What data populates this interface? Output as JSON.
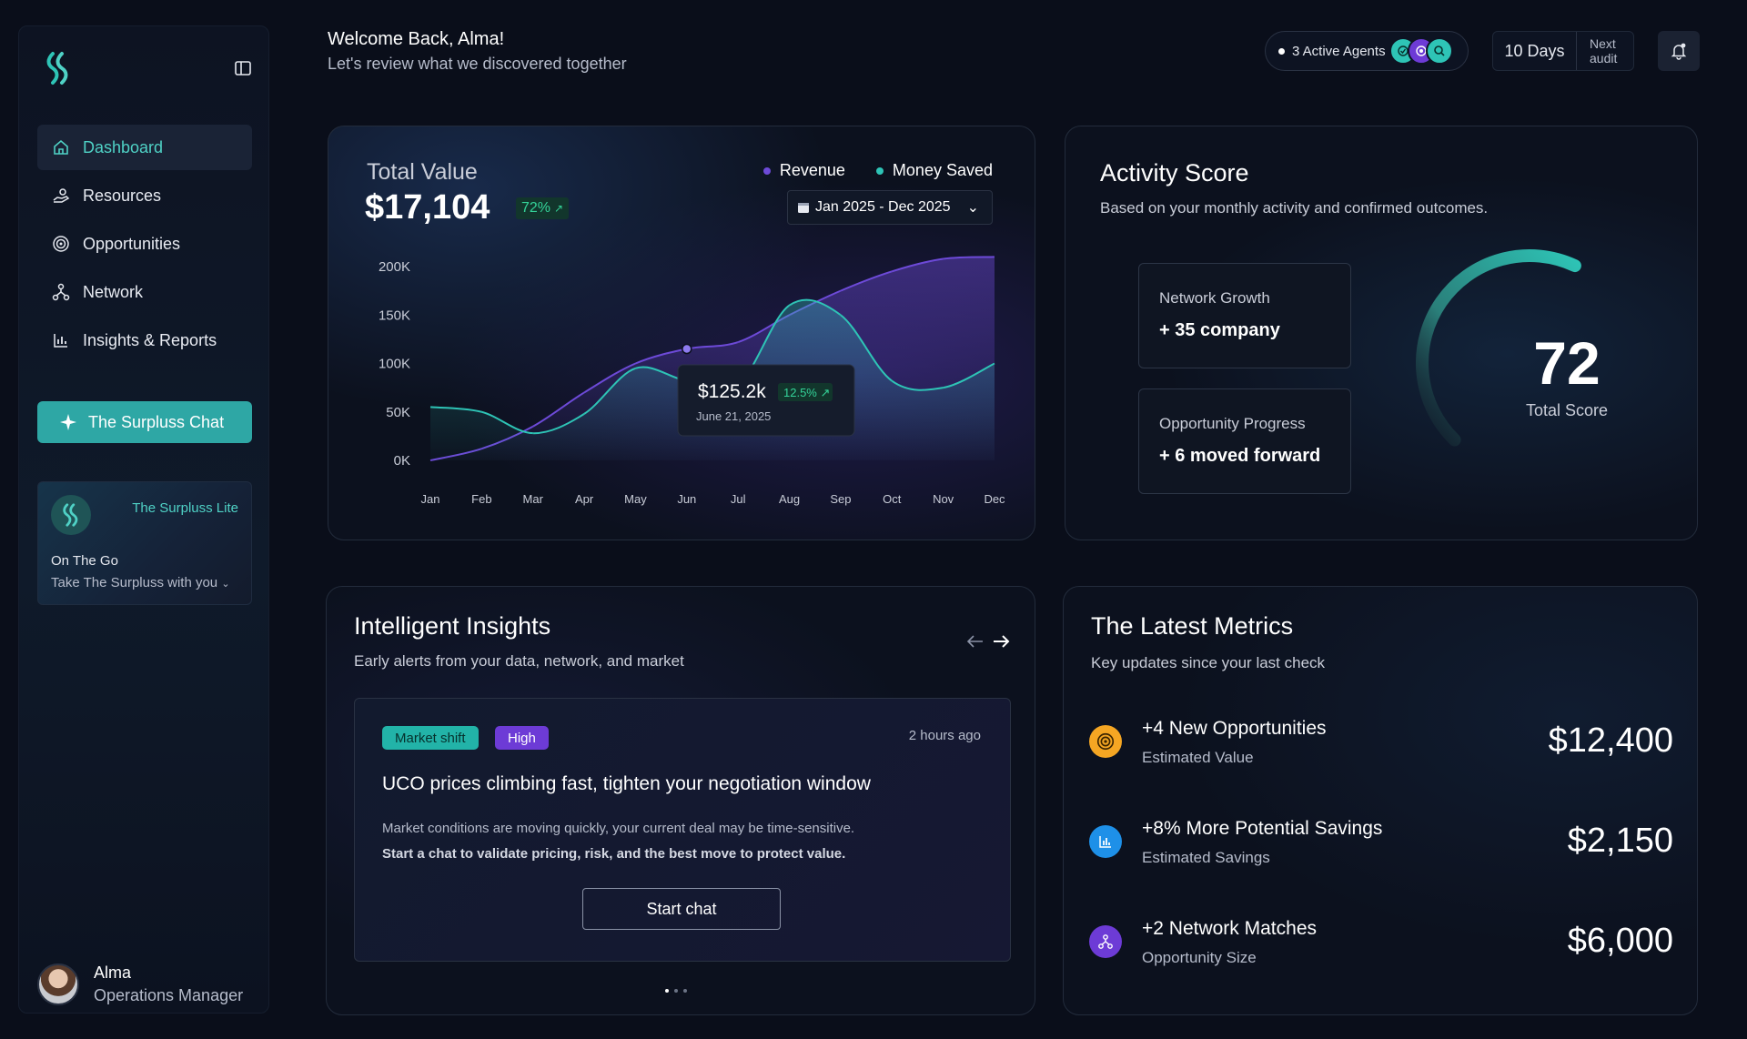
{
  "sidebar": {
    "items": [
      {
        "label": "Dashboard",
        "icon": "home-icon",
        "active": true
      },
      {
        "label": "Resources",
        "icon": "hand-coins-icon"
      },
      {
        "label": "Opportunities",
        "icon": "target-icon"
      },
      {
        "label": "Network",
        "icon": "network-icon"
      },
      {
        "label": "Insights & Reports",
        "icon": "bar-chart-icon"
      }
    ],
    "chat_button": "The Surpluss Chat",
    "lite": {
      "title": "The Surpluss Lite",
      "line1": "On The Go",
      "line2": "Take The Surpluss with you"
    },
    "user": {
      "name": "Alma",
      "role": "Operations Manager"
    }
  },
  "header": {
    "welcome": "Welcome Back, Alma!",
    "subtitle": "Let's review what we discovered together",
    "agents_label": "3 Active Agents",
    "days": "10 Days",
    "next_audit_1": "Next",
    "next_audit_2": "audit"
  },
  "total_value": {
    "title": "Total Value",
    "value": "$17,104",
    "badge": "72%",
    "legend": [
      "Revenue",
      "Money Saved"
    ],
    "date_range": "Jan 2025 - Dec 2025",
    "tooltip_value": "$125.2k",
    "tooltip_badge": "12.5%",
    "tooltip_date": "June 21, 2025"
  },
  "chart_data": {
    "type": "area",
    "categories": [
      "Jan",
      "Feb",
      "Mar",
      "Apr",
      "May",
      "Jun",
      "Jul",
      "Aug",
      "Sep",
      "Oct",
      "Nov",
      "Dec"
    ],
    "y_ticks": [
      "200K",
      "150K",
      "100K",
      "50K",
      "0K"
    ],
    "ylim": [
      0,
      200000
    ],
    "series": [
      {
        "name": "Revenue",
        "color": "#6d4ad8",
        "values": [
          0,
          12000,
          35000,
          70000,
          100000,
          115000,
          122000,
          150000,
          175000,
          195000,
          208000,
          210000
        ]
      },
      {
        "name": "Money Saved",
        "color": "#2ec4b6",
        "values": [
          55000,
          50000,
          28000,
          48000,
          95000,
          82000,
          78000,
          160000,
          150000,
          82000,
          75000,
          100000
        ]
      }
    ]
  },
  "activity": {
    "title": "Activity Score",
    "subtitle": "Based on your monthly activity and confirmed outcomes.",
    "boxes": [
      {
        "label": "Network Growth",
        "value": "+ 35 company"
      },
      {
        "label": "Opportunity Progress",
        "value": "+ 6 moved forward"
      }
    ],
    "score": "72",
    "score_label": "Total Score",
    "score_fraction": 0.72
  },
  "insights": {
    "title": "Intelligent Insights",
    "subtitle": "Early alerts from your data, network, and market",
    "tag1": "Market shift",
    "tag2": "High",
    "time": "2 hours ago",
    "headline": "UCO prices climbing fast, tighten your negotiation window",
    "body1": "Market conditions are moving quickly, your current deal may be time-sensitive.",
    "body2": "Start a chat to validate pricing, risk, and the best move to protect value.",
    "button": "Start chat"
  },
  "metrics": {
    "title": "The Latest Metrics",
    "subtitle": "Key updates since your last check",
    "rows": [
      {
        "head": "+4 New Opportunities",
        "desc": "Estimated Value",
        "value": "$12,400",
        "icon": "target-icon",
        "color": "#f5a623"
      },
      {
        "head": "+8% More Potential Savings",
        "desc": "Estimated Savings",
        "value": "$2,150",
        "icon": "bar-chart-icon",
        "color": "#1e90e8"
      },
      {
        "head": "+2 Network Matches",
        "desc": "Opportunity Size",
        "value": "$6,000",
        "icon": "network-icon",
        "color": "#6d3bd6"
      }
    ]
  }
}
